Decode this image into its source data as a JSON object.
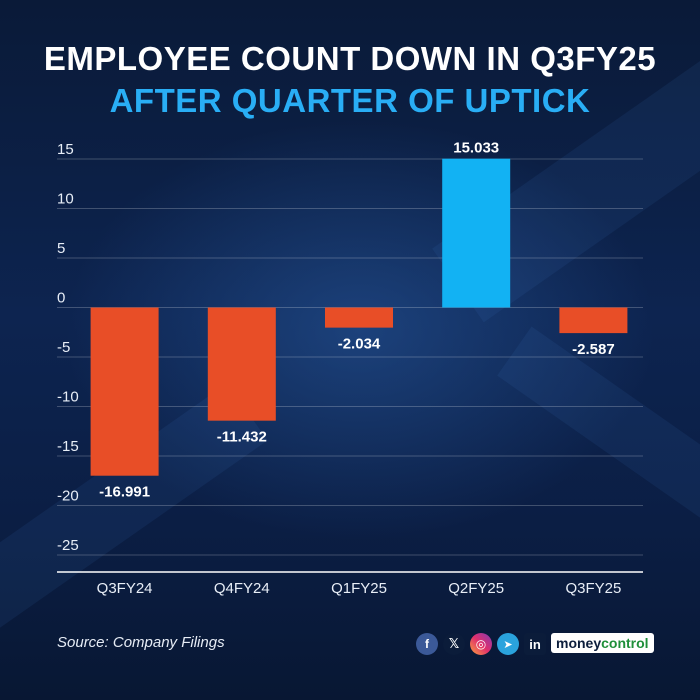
{
  "title_line1": "EMPLOYEE COUNT DOWN IN Q3FY25",
  "title_line2": "AFTER QUARTER OF UPTICK",
  "source": "Source: Company Filings",
  "brand": {
    "part1": "money",
    "part2": "control"
  },
  "social_icons": [
    "facebook-icon",
    "x-icon",
    "instagram-icon",
    "telegram-icon",
    "linkedin-icon"
  ],
  "colors": {
    "negative": "#e84e27",
    "positive": "#12b2f3",
    "title_accent": "#29aef5",
    "gridline": "rgba(255,255,255,0.22)"
  },
  "chart_data": {
    "type": "bar",
    "categories": [
      "Q3FY24",
      "Q4FY24",
      "Q1FY25",
      "Q2FY25",
      "Q3FY25"
    ],
    "values": [
      -16.991,
      -11.432,
      -2.034,
      15.033,
      -2.587
    ],
    "data_labels": [
      "-16.991",
      "-11.432",
      "-2.034",
      "15.033",
      "-2.587"
    ],
    "y_ticks": [
      15,
      10,
      5,
      0,
      -5,
      -10,
      -15,
      -20,
      -25
    ],
    "ylim": [
      -25,
      15
    ],
    "grid": true,
    "legend": "none"
  }
}
